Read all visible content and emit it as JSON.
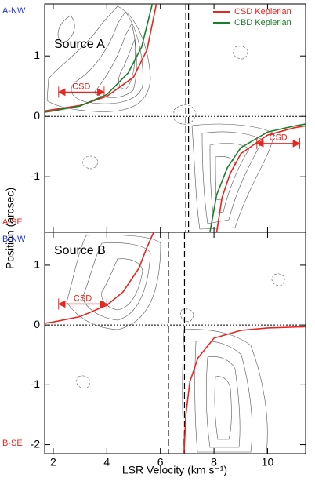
{
  "figure": {
    "xlabel": "LSR Velocity (km s⁻¹)",
    "ylabel": "Position (arcsec)"
  },
  "chart_data": [
    {
      "type": "line",
      "label": "Source A",
      "top_label": "A-NW",
      "bottom_label": "A-SE",
      "xlim": [
        1.68,
        11.42
      ],
      "ylim": [
        -1.92,
        1.86
      ],
      "xticks": [
        2,
        4,
        6,
        8,
        10
      ],
      "yticks": [
        -1,
        0,
        1
      ],
      "legend": "upper right",
      "vlines": [
        6.95,
        7.05
      ],
      "hline": 0,
      "series": [
        {
          "name": "CSD Keplerian",
          "color": "#e8251f",
          "x": [
            1.7,
            2,
            3,
            4,
            5,
            5.5,
            5.85,
            7,
            8.1,
            8.3,
            8.6,
            9,
            10,
            11,
            11.4
          ],
          "values": [
            0.09,
            0.11,
            0.18,
            0.33,
            0.65,
            1.1,
            1.86,
            null,
            -1.92,
            -1.35,
            -0.95,
            -0.62,
            -0.31,
            -0.19,
            -0.16
          ]
        },
        {
          "name": "CBD Keplerian",
          "color": "#1a7f2a",
          "x": [
            1.7,
            2,
            3,
            4,
            4.8,
            5.3,
            5.7,
            7,
            7.85,
            8.1,
            8.5,
            9,
            10,
            11,
            11.4
          ],
          "values": [
            0.07,
            0.09,
            0.17,
            0.36,
            0.72,
            1.15,
            1.86,
            null,
            -1.92,
            -1.3,
            -0.85,
            -0.52,
            -0.26,
            -0.16,
            -0.13
          ]
        }
      ],
      "annotations": [
        {
          "text": "CSD",
          "x": [
            2.2,
            3.9
          ],
          "y": 0.4
        },
        {
          "text": "CSD",
          "x": [
            9.6,
            11.2
          ],
          "y": -0.45
        }
      ]
    },
    {
      "type": "line",
      "label": "Source B",
      "top_label": "B-NW",
      "bottom_label": "B-SE",
      "xlim": [
        1.68,
        11.42
      ],
      "ylim": [
        -2.15,
        1.55
      ],
      "xticks": [
        2,
        4,
        6,
        8,
        10
      ],
      "yticks": [
        -2,
        -1,
        0,
        1
      ],
      "vlines": [
        6.3,
        6.9
      ],
      "hline": 0,
      "series": [
        {
          "color": "#e8251f",
          "x": [
            1.7,
            2,
            3,
            4,
            4.6,
            5.2,
            5.5,
            5.75,
            7,
            6.88,
            6.95,
            7.1,
            7.4,
            8,
            9,
            10,
            11.4
          ],
          "values": [
            0.03,
            0.05,
            0.14,
            0.33,
            0.55,
            0.95,
            1.3,
            1.55,
            null,
            -2.15,
            -1.5,
            -0.95,
            -0.55,
            -0.22,
            -0.09,
            -0.05,
            -0.03
          ]
        }
      ],
      "annotations": [
        {
          "text": "CSD",
          "x": [
            2.2,
            4.0
          ],
          "y": 0.35
        }
      ]
    }
  ]
}
